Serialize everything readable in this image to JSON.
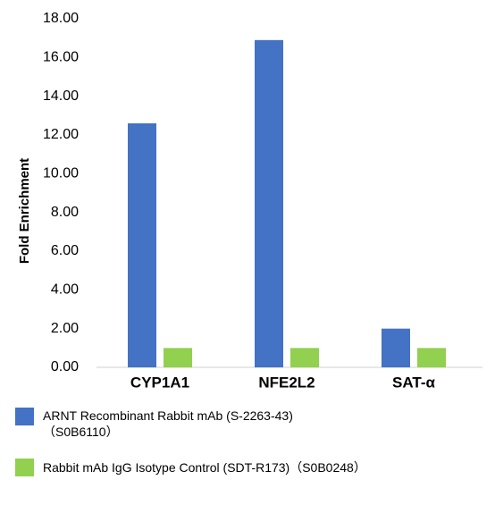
{
  "chart_data": {
    "type": "bar",
    "y_label": "Fold Enrichment",
    "categories": [
      "CYP1A1",
      "NFE2L2",
      "SAT-α"
    ],
    "series": [
      {
        "name": "ARNT Recombinant Rabbit mAb (S-2263-43)（S0B6110）",
        "color": "#4472c4",
        "values": [
          12.6,
          16.9,
          2.0
        ]
      },
      {
        "name": "Rabbit mAb IgG Isotype Control (SDT-R173)（S0B0248）",
        "color": "#92d050",
        "values": [
          1.0,
          1.0,
          1.0
        ]
      }
    ],
    "ylim": [
      0,
      18
    ],
    "yticks": [
      {
        "value": 0,
        "label": "0.00"
      },
      {
        "value": 2,
        "label": "2.00"
      },
      {
        "value": 4,
        "label": "4.00"
      },
      {
        "value": 6,
        "label": "6.00"
      },
      {
        "value": 8,
        "label": "8.00"
      },
      {
        "value": 10,
        "label": "10.00"
      },
      {
        "value": 12,
        "label": "12.00"
      },
      {
        "value": 14,
        "label": "14.00"
      },
      {
        "value": 16,
        "label": "16.00"
      },
      {
        "value": 18,
        "label": "18.00"
      }
    ],
    "grid": false
  }
}
